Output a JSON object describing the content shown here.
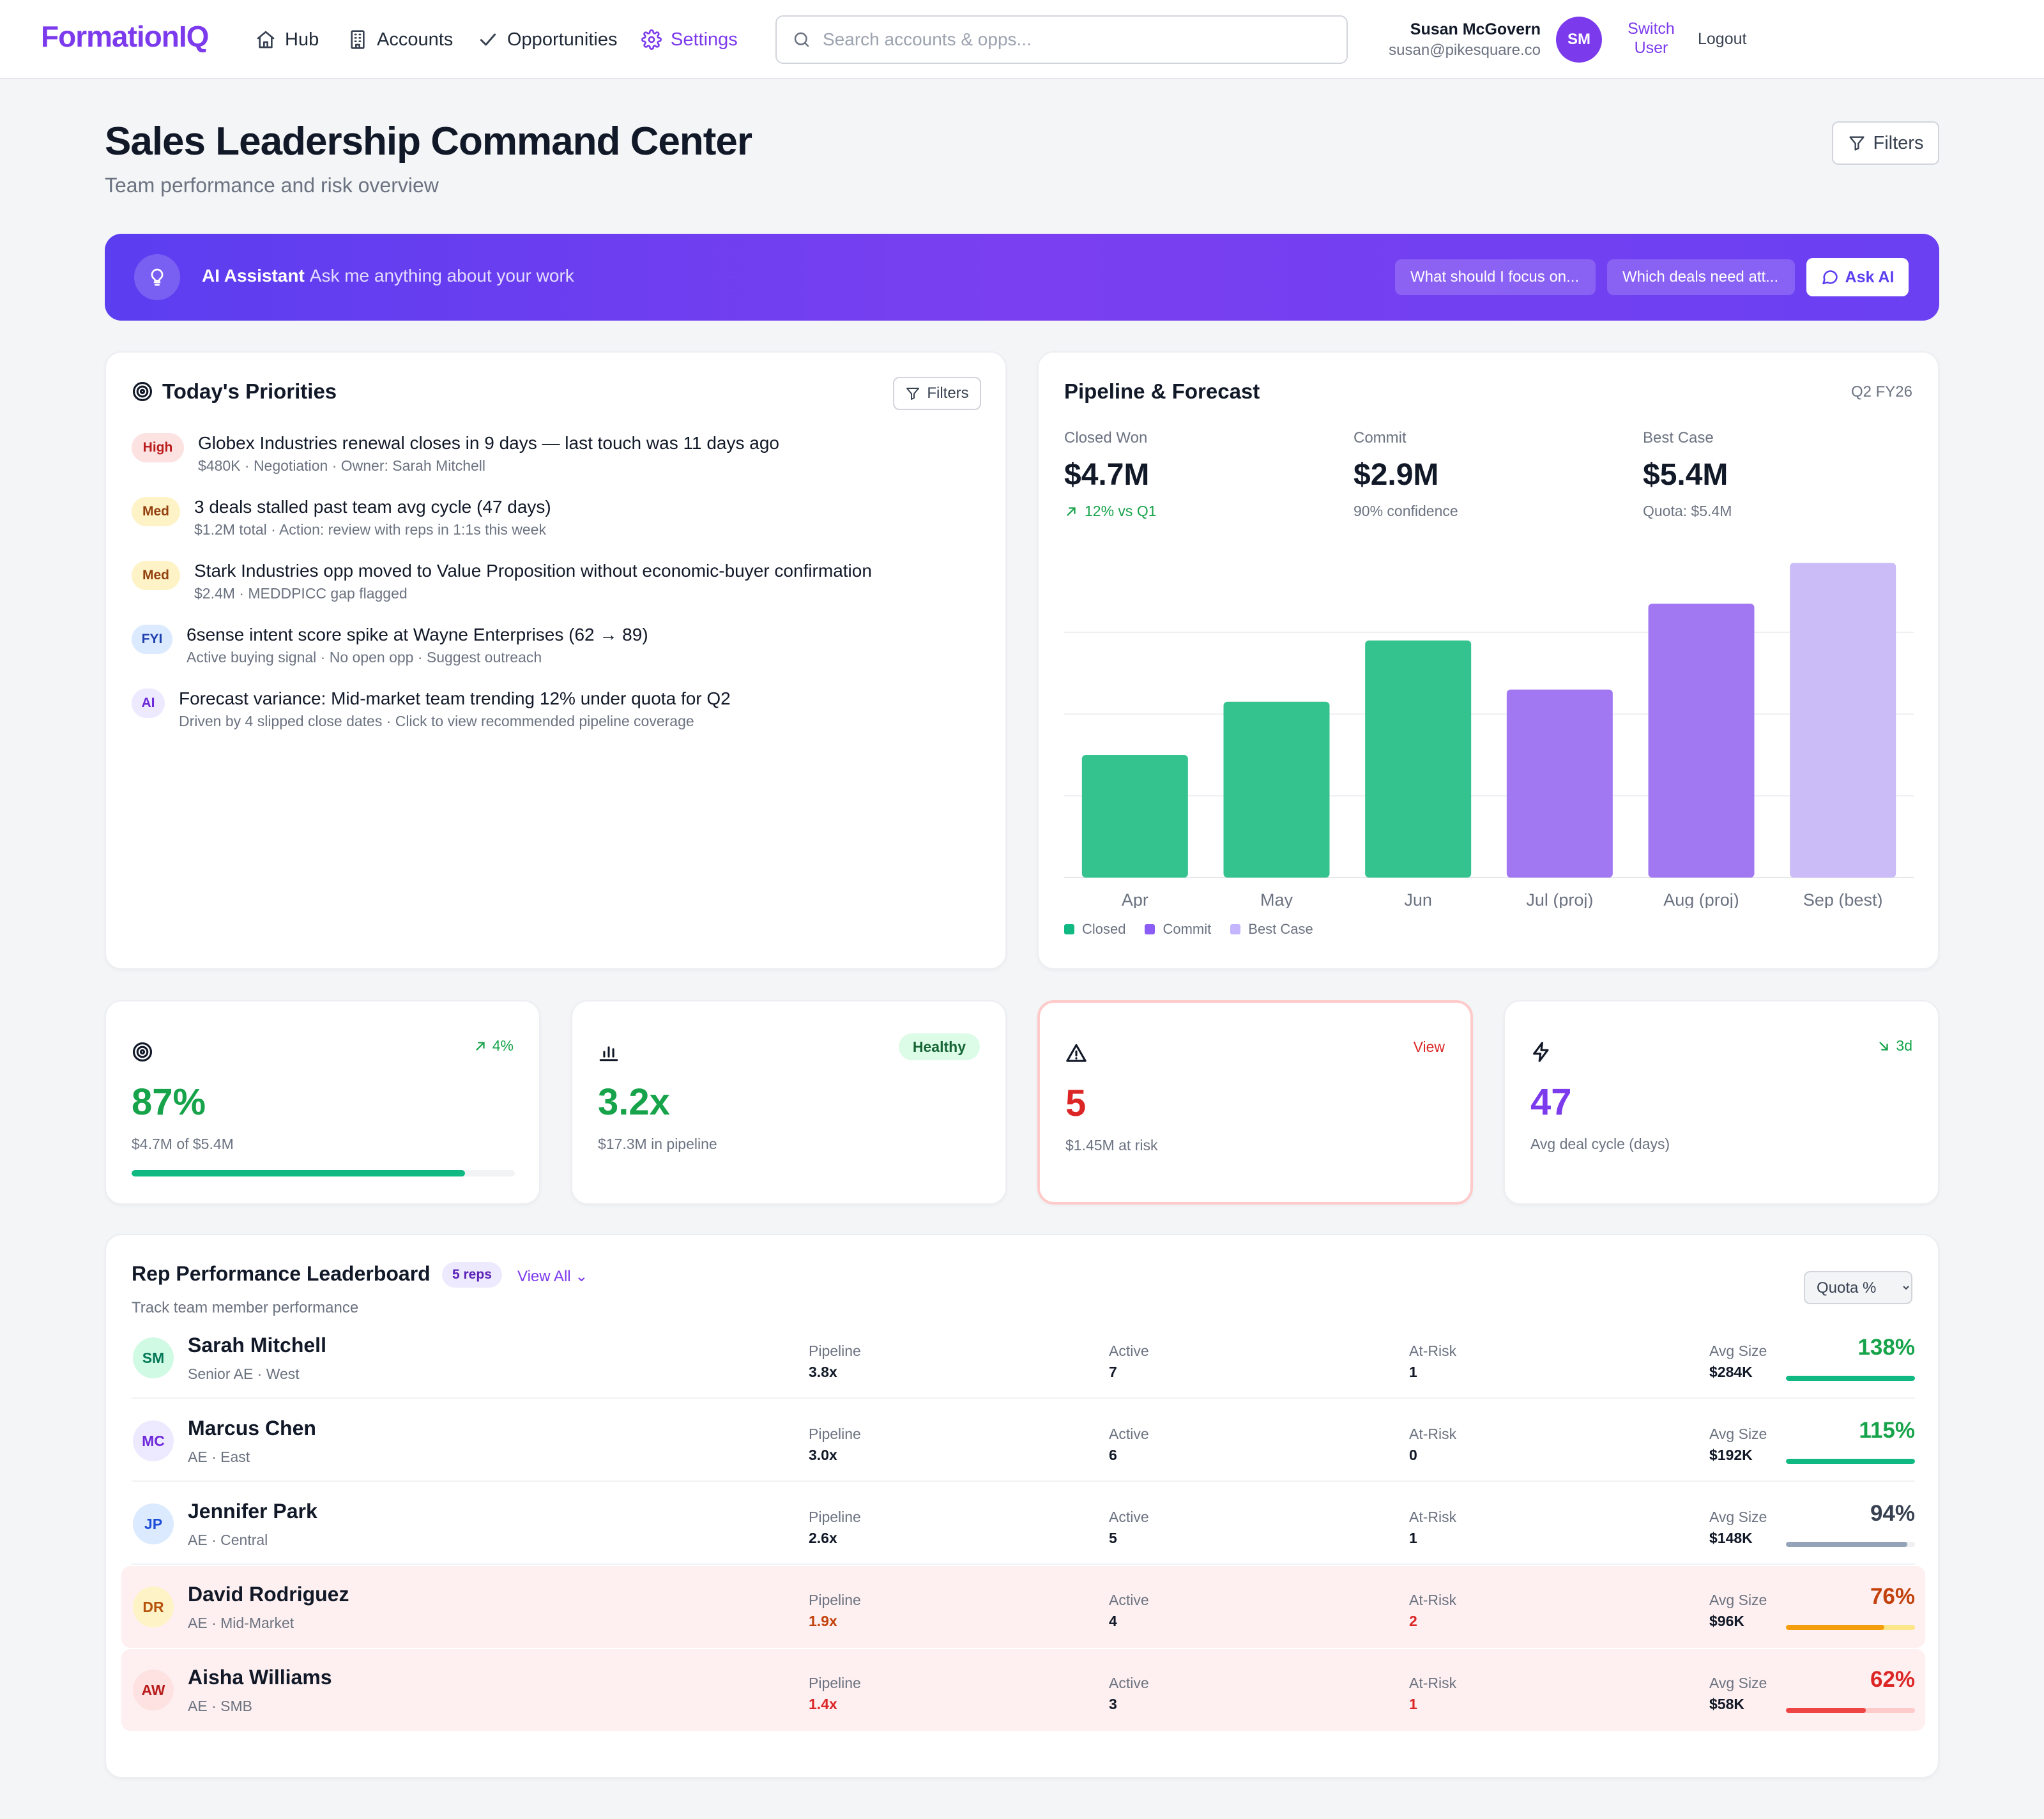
{
  "app": {
    "logo": "FormationIQ"
  },
  "nav": {
    "items": [
      {
        "label": "Hub",
        "icon": "home-icon"
      },
      {
        "label": "Accounts",
        "icon": "building-icon"
      },
      {
        "label": "Opportunities",
        "icon": "check-icon"
      },
      {
        "label": "Settings",
        "icon": "gear-icon",
        "active": true
      }
    ],
    "search_placeholder": "Search accounts & opps...",
    "user": {
      "name": "Susan McGovern",
      "email": "susan@pikesquare.co",
      "initials": "SM"
    },
    "switch_user": "Switch User",
    "logout": "Logout"
  },
  "page": {
    "title": "Sales Leadership Command Center",
    "subtitle": "Team performance and risk overview",
    "filters_label": "Filters"
  },
  "ai_bar": {
    "title": "AI Assistant",
    "prompt": "Ask me anything about your work",
    "chips": [
      "What should I focus on...",
      "Which deals need att..."
    ],
    "ask_label": "Ask AI"
  },
  "priorities": {
    "title": "Today's Priorities",
    "filters_label": "Filters",
    "items": [
      {
        "tag": "High",
        "level": "high",
        "text": "Globex Industries renewal closes in 9 days — last touch was 11 days ago",
        "sub": "$480K · Negotiation · Owner: Sarah Mitchell"
      },
      {
        "tag": "Med",
        "level": "med",
        "text": "3 deals stalled past team avg cycle (47 days)",
        "sub": "$1.2M total · Action: review with reps in 1:1s this week"
      },
      {
        "tag": "Med",
        "level": "med",
        "text": "Stark Industries opp moved to Value Proposition without economic-buyer confirmation",
        "sub": "$2.4M · MEDDPICC gap flagged"
      },
      {
        "tag": "FYI",
        "level": "fyi",
        "text": "6sense intent score spike at Wayne Enterprises (62 → 89)",
        "sub": "Active buying signal · No open opp · Suggest outreach"
      },
      {
        "tag": "AI",
        "level": "ai",
        "text": "Forecast variance: Mid-market team trending 12% under quota for Q2",
        "sub": "Driven by 4 slipped close dates · Click to view recommended pipeline coverage"
      }
    ]
  },
  "pipeline": {
    "title": "Pipeline & Forecast",
    "quarter": "Q2 FY26",
    "metrics": [
      {
        "label": "Closed Won",
        "value": "$4.7M",
        "note": "12% vs Q1",
        "trend": "up"
      },
      {
        "label": "Commit",
        "value": "$2.9M",
        "note": "90% confidence",
        "trend": "none"
      },
      {
        "label": "Best Case",
        "value": "$5.4M",
        "note": "Quota: $5.4M",
        "trend": "none"
      }
    ],
    "legend": [
      "Closed",
      "Commit",
      "Best Case"
    ]
  },
  "chart_data": {
    "type": "bar",
    "categories": [
      "Apr",
      "May",
      "Jun",
      "Jul (proj)",
      "Aug (proj)",
      "Sep (best)"
    ],
    "values": [
      1.5,
      2.15,
      2.9,
      2.3,
      3.35,
      3.85
    ],
    "series_of_bar": [
      "Closed",
      "Closed",
      "Closed",
      "Commit",
      "Commit",
      "Best Case"
    ],
    "colors": {
      "Closed": "#34c38f",
      "Commit": "#a178f2",
      "Best Case": "#cbbcf8"
    },
    "ylim": [
      0,
      4
    ],
    "grid": true,
    "legend": [
      "Closed",
      "Commit",
      "Best Case"
    ],
    "legend_position": "bottom-left"
  },
  "stats": [
    {
      "value": "87%",
      "sub": "$4.7M of $5.4M",
      "badge": "4%",
      "badge_type": "trend-up",
      "color": "#16a34a",
      "progress": 0.87,
      "icon": "target-icon"
    },
    {
      "value": "3.2x",
      "sub": "$17.3M in pipeline",
      "badge": "Healthy",
      "badge_type": "pill",
      "color": "#16a34a",
      "icon": "bar-chart-icon"
    },
    {
      "value": "5",
      "sub": "$1.45M at risk",
      "badge": "View",
      "badge_type": "link",
      "color": "#dc2626",
      "icon": "warning-icon"
    },
    {
      "value": "47",
      "sub": "Avg deal cycle (days)",
      "badge": "3d",
      "badge_type": "trend-down",
      "color": "#7c3aed",
      "icon": "lightning-icon"
    }
  ],
  "leaderboard": {
    "title": "Rep Performance Leaderboard",
    "count": "5 reps",
    "view_all": "View All ⌄",
    "subtitle": "Track team member performance",
    "sort_label": "Quota %",
    "columns": [
      "Pipeline",
      "Active",
      "At-Risk",
      "Avg Size"
    ],
    "reps": [
      {
        "initials": "SM",
        "name": "Sarah Mitchell",
        "role": "Senior AE · West",
        "pipeline": "3.8x",
        "active": "7",
        "at_risk": "1",
        "avg_size": "$284K",
        "quota": "138%",
        "quota_fraction": 1.0,
        "warn": false,
        "avatar_bg": "#d1fae5",
        "avatar_fg": "#047857",
        "pct_color": "#16a34a",
        "bar_color": "#10b981",
        "pipeline_color": "#111827",
        "risk_color": "#111827"
      },
      {
        "initials": "MC",
        "name": "Marcus Chen",
        "role": "AE · East",
        "pipeline": "3.0x",
        "active": "6",
        "at_risk": "0",
        "avg_size": "$192K",
        "quota": "115%",
        "quota_fraction": 1.0,
        "warn": false,
        "avatar_bg": "#ede9fe",
        "avatar_fg": "#6d28d9",
        "pct_color": "#16a34a",
        "bar_color": "#10b981",
        "pipeline_color": "#111827",
        "risk_color": "#111827"
      },
      {
        "initials": "JP",
        "name": "Jennifer Park",
        "role": "AE · Central",
        "pipeline": "2.6x",
        "active": "5",
        "at_risk": "1",
        "avg_size": "$148K",
        "quota": "94%",
        "quota_fraction": 0.94,
        "warn": false,
        "avatar_bg": "#dbeafe",
        "avatar_fg": "#1d4ed8",
        "pct_color": "#374151",
        "bar_color": "#94a3b8",
        "pipeline_color": "#111827",
        "risk_color": "#111827"
      },
      {
        "initials": "DR",
        "name": "David Rodriguez",
        "role": "AE · Mid-Market",
        "pipeline": "1.9x",
        "active": "4",
        "at_risk": "2",
        "avg_size": "$96K",
        "quota": "76%",
        "quota_fraction": 0.76,
        "warn": true,
        "avatar_bg": "#fef3c7",
        "avatar_fg": "#b45309",
        "pct_color": "#c2410c",
        "bar_color": "#f59e0b",
        "track_color": "#fde68a",
        "pipeline_color": "#c2410c",
        "risk_color": "#dc2626"
      },
      {
        "initials": "AW",
        "name": "Aisha Williams",
        "role": "AE · SMB",
        "pipeline": "1.4x",
        "active": "3",
        "at_risk": "1",
        "avg_size": "$58K",
        "quota": "62%",
        "quota_fraction": 0.62,
        "warn": true,
        "avatar_bg": "#fee2e2",
        "avatar_fg": "#b91c1c",
        "pct_color": "#dc2626",
        "bar_color": "#ef4444",
        "track_color": "#fecaca",
        "pipeline_color": "#dc2626",
        "risk_color": "#dc2626"
      }
    ]
  }
}
